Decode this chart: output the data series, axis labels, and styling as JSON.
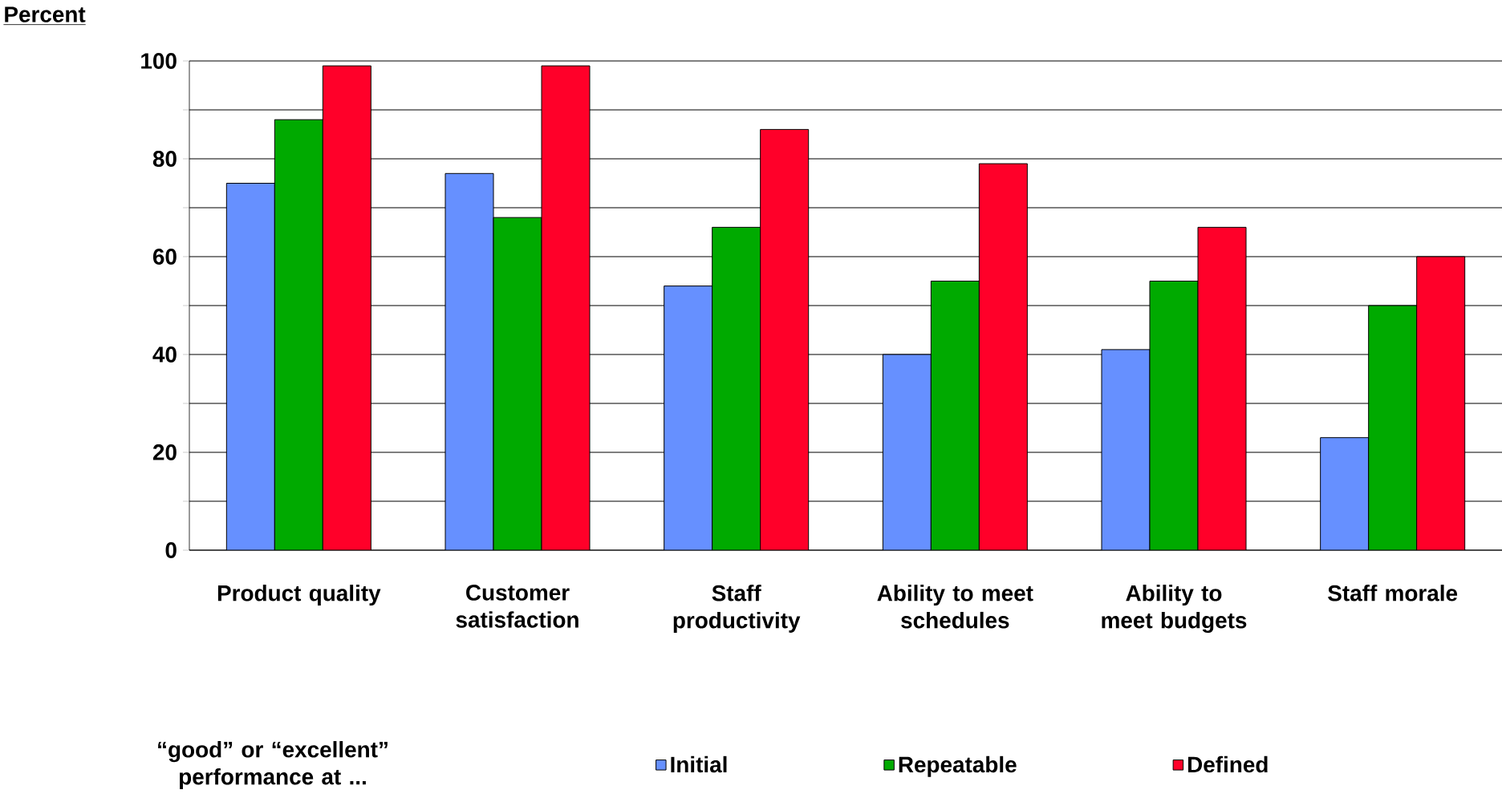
{
  "chart_data": {
    "type": "bar",
    "ylabel": "Percent",
    "categories": [
      "Product quality",
      "Customer satisfaction",
      "Staff productivity",
      "Ability to meet schedules",
      "Ability to meet budgets",
      "Staff morale"
    ],
    "series": [
      {
        "name": "Initial",
        "color": "#6690ff",
        "values": [
          75,
          77,
          54,
          40,
          41,
          23
        ]
      },
      {
        "name": "Repeatable",
        "color": "#00aa00",
        "values": [
          88,
          68,
          66,
          55,
          55,
          50
        ]
      },
      {
        "name": "Defined",
        "color": "#ff0029",
        "values": [
          99,
          99,
          86,
          79,
          66,
          60
        ]
      }
    ],
    "ylim": [
      0,
      100
    ],
    "yticks": [
      0,
      {
        "value": 10,
        "label": null
      },
      20,
      {
        "value": 30,
        "label": null
      },
      40,
      {
        "value": 50,
        "label": null
      },
      60,
      {
        "value": 70,
        "label": null
      },
      80,
      {
        "value": 90,
        "label": null
      },
      100
    ],
    "grid": "y",
    "legend": "bottom",
    "annotations": [
      "“good” or “excellent” performance at ..."
    ]
  }
}
